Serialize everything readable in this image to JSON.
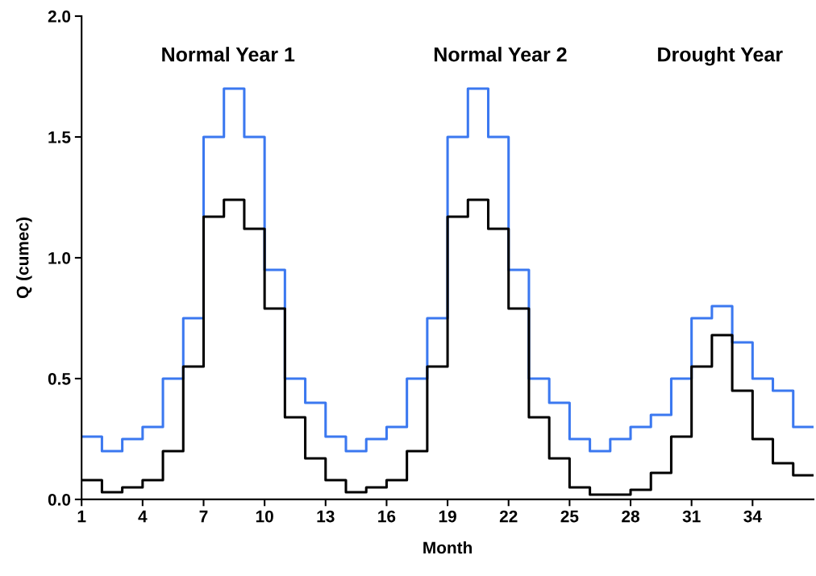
{
  "chart_data": {
    "type": "step",
    "xlabel": "Month",
    "ylabel": "Q (cumec)",
    "annotations": [
      "Normal Year 1",
      "Normal Year 2",
      "Drought Year"
    ],
    "x": [
      1,
      2,
      3,
      4,
      5,
      6,
      7,
      8,
      9,
      10,
      11,
      12,
      13,
      14,
      15,
      16,
      17,
      18,
      19,
      20,
      21,
      22,
      23,
      24,
      25,
      26,
      27,
      28,
      29,
      30,
      31,
      32,
      33,
      34,
      35,
      36,
      37
    ],
    "series": [
      {
        "color": "#3b78f0",
        "values": [
          0.26,
          0.2,
          0.25,
          0.3,
          0.5,
          0.75,
          1.5,
          1.7,
          1.5,
          0.95,
          0.5,
          0.4,
          0.26,
          0.2,
          0.25,
          0.3,
          0.5,
          0.75,
          1.5,
          1.7,
          1.5,
          0.95,
          0.5,
          0.4,
          0.25,
          0.2,
          0.25,
          0.3,
          0.35,
          0.5,
          0.75,
          0.8,
          0.65,
          0.5,
          0.45,
          0.3,
          0.3
        ]
      },
      {
        "color": "#000000",
        "values": [
          0.08,
          0.03,
          0.05,
          0.08,
          0.2,
          0.55,
          1.17,
          1.24,
          1.12,
          0.79,
          0.34,
          0.17,
          0.08,
          0.03,
          0.05,
          0.08,
          0.2,
          0.55,
          1.17,
          1.24,
          1.12,
          0.79,
          0.34,
          0.17,
          0.05,
          0.02,
          0.02,
          0.04,
          0.11,
          0.26,
          0.55,
          0.68,
          0.45,
          0.25,
          0.15,
          0.1,
          0.1
        ]
      }
    ],
    "xlim": [
      1,
      37
    ],
    "xticks": [
      1,
      4,
      7,
      10,
      13,
      16,
      19,
      22,
      25,
      28,
      31,
      34
    ],
    "ylim": [
      0,
      2.0
    ],
    "yticks": [
      {
        "value": 0,
        "label": "0.0"
      },
      {
        "value": 0.5,
        "label": "0.5"
      },
      {
        "value": 1.0,
        "label": "1.0"
      },
      {
        "value": 1.5,
        "label": "1.5"
      },
      {
        "value": 2.0,
        "label": "2.0"
      }
    ],
    "grid": false,
    "legend": false
  }
}
